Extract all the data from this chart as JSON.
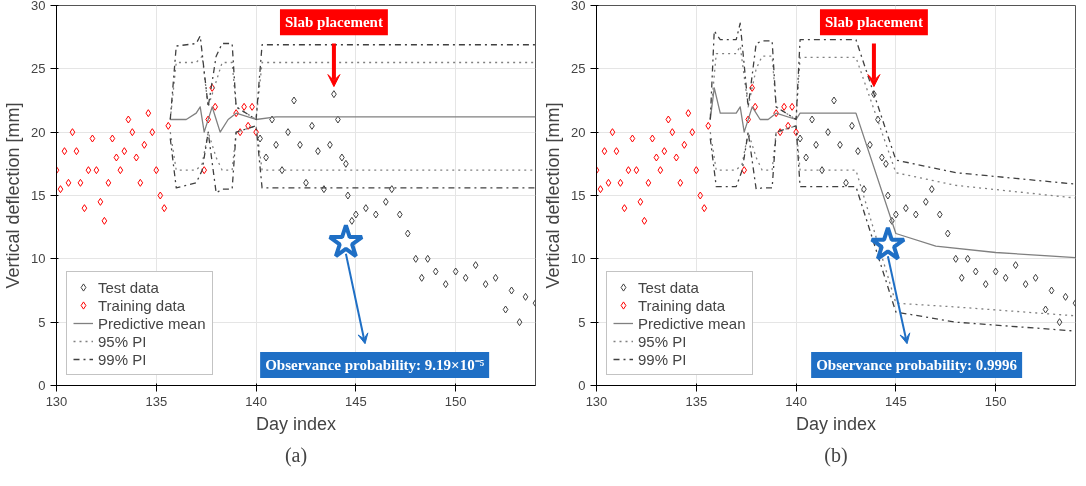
{
  "chart_data": [
    {
      "type": "scatter",
      "xlabel": "Day index",
      "ylabel": "Vertical deflection [mm]",
      "xlim": [
        130,
        154
      ],
      "ylim": [
        0,
        30
      ],
      "xticks": [
        130,
        135,
        140,
        145,
        150
      ],
      "yticks": [
        0,
        5,
        10,
        15,
        20,
        25,
        30
      ],
      "grid": true,
      "legend": "bottom left",
      "annotations": [
        {
          "text": "Slab placement",
          "x": 143.9,
          "y": 23
        },
        "Observance probability: 9.19×10⁻⁵",
        "(a)"
      ],
      "series": [
        {
          "name": "Test data",
          "marker": "diamond",
          "color": "#404040",
          "x": [
            140.2,
            140.5,
            140.8,
            141.0,
            141.3,
            141.6,
            141.9,
            142.2,
            142.5,
            142.8,
            143.1,
            143.4,
            143.7,
            143.9,
            144.1,
            144.3,
            144.5,
            144.6,
            144.8,
            145.0,
            145.5,
            146.0,
            146.5,
            146.8,
            147.2,
            147.6,
            148.0,
            148.3,
            148.6,
            149.0,
            149.5,
            150.0,
            150.5,
            151.0,
            151.5,
            152.0,
            152.5,
            152.8,
            153.2,
            153.5,
            154.0
          ],
          "values": [
            19.5,
            18,
            21,
            19,
            17,
            20,
            22.5,
            19,
            16,
            20.5,
            18.5,
            15.5,
            19,
            23,
            21,
            18,
            17.5,
            15,
            13,
            13.5,
            14,
            13.5,
            14.5,
            15.5,
            13.5,
            12,
            10,
            8.5,
            10,
            9,
            8,
            9,
            8.5,
            9.5,
            8,
            8.5,
            6,
            7.5,
            5,
            7,
            6.5
          ]
        },
        {
          "name": "Training data",
          "marker": "diamond",
          "color": "#ff0000",
          "x": [
            130.0,
            130.2,
            130.4,
            130.6,
            130.8,
            131.0,
            131.2,
            131.4,
            131.6,
            131.8,
            132.0,
            132.2,
            132.4,
            132.6,
            132.8,
            133.0,
            133.2,
            133.4,
            133.6,
            133.8,
            134.0,
            134.2,
            134.4,
            134.6,
            134.8,
            135.0,
            135.2,
            135.4,
            135.6,
            137.4,
            137.6,
            137.8,
            137.95,
            139.0,
            139.2,
            139.4,
            139.6,
            139.8,
            140.0
          ],
          "values": [
            17,
            15.5,
            18.5,
            16,
            20,
            18.5,
            16,
            14,
            17,
            19.5,
            17,
            14.5,
            13,
            16,
            19.5,
            18,
            17,
            18.5,
            21,
            20,
            18,
            16,
            19,
            21.5,
            20,
            17,
            15,
            14,
            20.5,
            17,
            21,
            23.5,
            22,
            21.5,
            20,
            22,
            20.5,
            22,
            20
          ]
        },
        {
          "name": "Predictive mean",
          "type": "line",
          "line_style": "solid",
          "color": "#808080",
          "x": [
            135.7,
            136.5,
            137.0,
            137.2,
            137.4,
            137.8,
            138.0,
            138.2,
            138.6,
            139.0,
            140.0,
            141.0,
            154.0
          ],
          "values": [
            21,
            21,
            21.5,
            22,
            20,
            22,
            21,
            20,
            21,
            21.5,
            21,
            21.2,
            21.2
          ]
        },
        {
          "name": "95% PI",
          "type": "line",
          "line_style": "dotted",
          "color": "#808080",
          "x": [
            135.7,
            136.0,
            137.0,
            137.3,
            137.6,
            138.0,
            138.3,
            138.8,
            139.0,
            140.0,
            140.3,
            154.0
          ],
          "values": [
            21,
            25.5,
            25.5,
            26,
            22,
            24,
            25.5,
            25.5,
            22,
            21,
            25.5,
            25.5
          ]
        },
        {
          "type": "line",
          "line_style": "dotted",
          "color": "#808080",
          "x": [
            135.7,
            136.0,
            137.0,
            137.3,
            137.6,
            138.0,
            138.3,
            138.8,
            139.0,
            140.0,
            140.3,
            154.0
          ],
          "values": [
            20,
            17,
            17,
            17.5,
            20,
            18,
            17,
            17,
            20,
            20.5,
            17,
            17
          ]
        },
        {
          "name": "99% PI",
          "type": "line",
          "line_style": "dashdot",
          "color": "#404040",
          "x": [
            135.7,
            136.0,
            137.0,
            137.2,
            137.6,
            138.0,
            138.3,
            138.8,
            139.0,
            140.0,
            140.3,
            154.0
          ],
          "values": [
            21,
            26.8,
            27,
            27.6,
            22,
            26,
            27,
            27,
            22,
            21,
            26.9,
            26.9
          ]
        },
        {
          "type": "line",
          "line_style": "dashdot",
          "color": "#404040",
          "x": [
            135.7,
            136.0,
            137.0,
            137.3,
            137.6,
            138.0,
            138.3,
            138.8,
            139.0,
            140.0,
            140.3,
            154.0
          ],
          "values": [
            19.5,
            15.6,
            16,
            17,
            20,
            15.2,
            15.5,
            15.5,
            20,
            20.5,
            15.6,
            15.6
          ]
        },
        {
          "type": "scatter",
          "marker": "star",
          "color": "#1f6fc5",
          "x": [
            144.5
          ],
          "values": [
            11.3
          ]
        }
      ]
    },
    {
      "type": "scatter",
      "xlabel": "Day index",
      "ylabel": "Vertical deflection [mm]",
      "xlim": [
        130,
        154
      ],
      "ylim": [
        0,
        30
      ],
      "xticks": [
        130,
        135,
        140,
        145,
        150
      ],
      "yticks": [
        0,
        5,
        10,
        15,
        20,
        25,
        30
      ],
      "grid": true,
      "legend": "bottom left",
      "annotations": [
        {
          "text": "Slab placement",
          "x": 143.9,
          "y": 23
        },
        "Observance probability: 0.9996",
        "(b)"
      ],
      "series": [
        {
          "name": "Test data",
          "marker": "diamond",
          "color": "#404040",
          "x": [
            140.2,
            140.5,
            140.8,
            141.0,
            141.3,
            141.6,
            141.9,
            142.2,
            142.5,
            142.8,
            143.1,
            143.4,
            143.7,
            143.9,
            144.1,
            144.3,
            144.5,
            144.6,
            144.8,
            145.0,
            145.5,
            146.0,
            146.5,
            146.8,
            147.2,
            147.6,
            148.0,
            148.3,
            148.6,
            149.0,
            149.5,
            150.0,
            150.5,
            151.0,
            151.5,
            152.0,
            152.5,
            152.8,
            153.2,
            153.5,
            154.0
          ],
          "values": [
            19.5,
            18,
            21,
            19,
            17,
            20,
            22.5,
            19,
            16,
            20.5,
            18.5,
            15.5,
            19,
            23,
            21,
            18,
            17.5,
            15,
            13,
            13.5,
            14,
            13.5,
            14.5,
            15.5,
            13.5,
            12,
            10,
            8.5,
            10,
            9,
            8,
            9,
            8.5,
            9.5,
            8,
            8.5,
            6,
            7.5,
            5,
            7,
            6.5
          ]
        },
        {
          "name": "Training data",
          "marker": "diamond",
          "color": "#ff0000",
          "x": [
            130.0,
            130.2,
            130.4,
            130.6,
            130.8,
            131.0,
            131.2,
            131.4,
            131.6,
            131.8,
            132.0,
            132.2,
            132.4,
            132.6,
            132.8,
            133.0,
            133.2,
            133.4,
            133.6,
            133.8,
            134.0,
            134.2,
            134.4,
            134.6,
            134.8,
            135.0,
            135.2,
            135.4,
            135.6,
            137.4,
            137.6,
            137.8,
            137.95,
            139.0,
            139.2,
            139.4,
            139.6,
            139.8,
            140.0
          ],
          "values": [
            17,
            15.5,
            18.5,
            16,
            20,
            18.5,
            16,
            14,
            17,
            19.5,
            17,
            14.5,
            13,
            16,
            19.5,
            18,
            17,
            18.5,
            21,
            20,
            18,
            16,
            19,
            21.5,
            20,
            17,
            15,
            14,
            20.5,
            17,
            21,
            23.5,
            22,
            21.5,
            20,
            22,
            20.5,
            22,
            20
          ]
        },
        {
          "name": "Predictive mean",
          "type": "line",
          "line_style": "solid",
          "color": "#808080",
          "x": [
            135.7,
            135.9,
            136.2,
            137.0,
            137.2,
            137.4,
            137.8,
            138.2,
            138.6,
            139.0,
            140.0,
            140.2,
            143.0,
            145.0,
            147.0,
            150.0,
            154.0
          ],
          "values": [
            21,
            23.5,
            21.5,
            21.5,
            22,
            20,
            22,
            21,
            21,
            21.5,
            21,
            21.5,
            21.5,
            12,
            11,
            10.5,
            10.1
          ]
        },
        {
          "name": "95% PI",
          "type": "line",
          "line_style": "dotted",
          "color": "#808080",
          "x": [
            135.7,
            136.0,
            137.0,
            137.2,
            137.6,
            138.0,
            138.3,
            138.8,
            139.0,
            140.0,
            140.2,
            143.0,
            145.0,
            148.0,
            154.0
          ],
          "values": [
            21,
            26.2,
            26.2,
            26.8,
            22,
            25,
            26,
            26,
            22,
            21,
            25.9,
            25.9,
            16.8,
            15.8,
            14.8
          ]
        },
        {
          "type": "line",
          "line_style": "dotted",
          "color": "#808080",
          "x": [
            135.7,
            136.0,
            137.0,
            137.3,
            137.6,
            138.0,
            138.3,
            138.8,
            139.0,
            140.0,
            140.2,
            143.0,
            145.0,
            148.0,
            154.0
          ],
          "values": [
            20,
            17,
            17,
            17.5,
            20,
            18,
            17,
            17,
            20,
            20.5,
            17,
            17,
            6.5,
            6.2,
            5.5
          ]
        },
        {
          "name": "99% PI",
          "type": "line",
          "line_style": "dashdot",
          "color": "#404040",
          "x": [
            135.7,
            135.9,
            136.2,
            137.0,
            137.2,
            137.6,
            138.0,
            138.3,
            138.8,
            139.0,
            140.0,
            140.2,
            143.0,
            145.0,
            148.0,
            154.0
          ],
          "values": [
            21,
            28,
            27.3,
            27.3,
            28.6,
            22,
            27,
            27.2,
            27.2,
            22,
            21,
            27.3,
            27.3,
            17.8,
            16.8,
            15.9
          ]
        },
        {
          "type": "line",
          "line_style": "dashdot",
          "color": "#404040",
          "x": [
            135.7,
            136.0,
            137.0,
            137.3,
            137.6,
            138.0,
            138.3,
            138.8,
            139.0,
            140.0,
            140.2,
            143.0,
            145.0,
            148.0,
            154.0
          ],
          "values": [
            19.5,
            15.7,
            15.7,
            17,
            20,
            15.5,
            15.6,
            15.6,
            20,
            20.5,
            15.7,
            15.7,
            5.8,
            5,
            4.3
          ]
        },
        {
          "type": "scatter",
          "marker": "star",
          "color": "#1f6fc5",
          "x": [
            144.6
          ],
          "values": [
            11.1
          ]
        }
      ]
    }
  ]
}
